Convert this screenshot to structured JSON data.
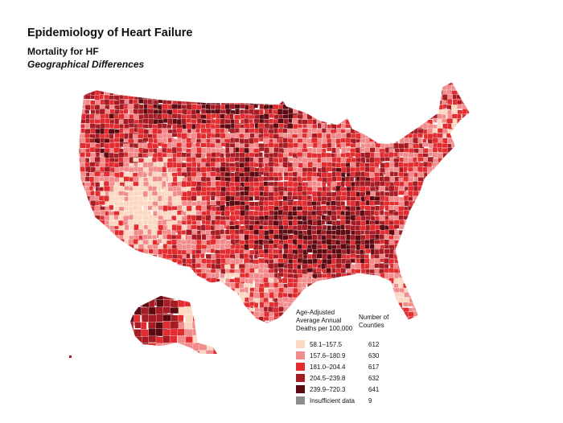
{
  "header": {
    "title": "Epidemiology of Heart Failure",
    "subtitle": "Mortality for HF",
    "subtitle2": "Geographical Differences"
  },
  "legend": {
    "heading": "Age-Adjusted Average Annual Deaths per 100,000",
    "count_heading": "Number of Counties",
    "items": [
      {
        "range": "58.1–157.5",
        "count": "612",
        "color": "#fbd8c2"
      },
      {
        "range": "157.6–180.9",
        "count": "630",
        "color": "#f28c8c"
      },
      {
        "range": "181.0–204.4",
        "count": "617",
        "color": "#e32c30"
      },
      {
        "range": "204.5–239.8",
        "count": "632",
        "color": "#a51c24"
      },
      {
        "range": "239.9–720.3",
        "count": "641",
        "color": "#5a0a10"
      },
      {
        "range": "Insufficient data",
        "count": "9",
        "color": "#8c8c8c"
      }
    ]
  }
}
